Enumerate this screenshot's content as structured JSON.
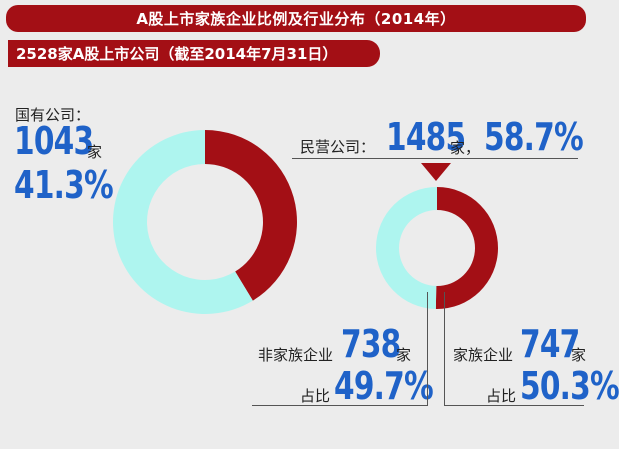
{
  "header": {
    "title": "A股上市家族企业比例及行业分布（2014年）",
    "subtitle": "2528家A股上市公司（截至2014年7月31日）"
  },
  "state_owned": {
    "label": "国有公司：",
    "count": "1043",
    "unit": "家",
    "percent": "41.3%"
  },
  "private": {
    "label": "民营公司：",
    "count": "1485",
    "unit": "家，",
    "percent": "58.7%"
  },
  "non_family": {
    "label": "非家族企业",
    "count": "738",
    "unit": "家",
    "share_label": "占比",
    "percent": "49.7%"
  },
  "family": {
    "label": "家族企业",
    "count": "747",
    "unit": "家",
    "share_label": "占比",
    "percent": "50.3%"
  },
  "colors": {
    "dark_red": "#a30f15",
    "cyan": "#aef5ef",
    "blue": "#1f62c8"
  },
  "chart_data": [
    {
      "type": "pie",
      "categories": [
        "国有公司",
        "民营公司"
      ],
      "values": [
        41.3,
        58.7
      ],
      "counts": [
        1043,
        1485
      ]
    },
    {
      "type": "pie",
      "categories": [
        "家族企业",
        "非家族企业"
      ],
      "values": [
        50.3,
        49.7
      ],
      "counts": [
        747,
        738
      ]
    }
  ]
}
